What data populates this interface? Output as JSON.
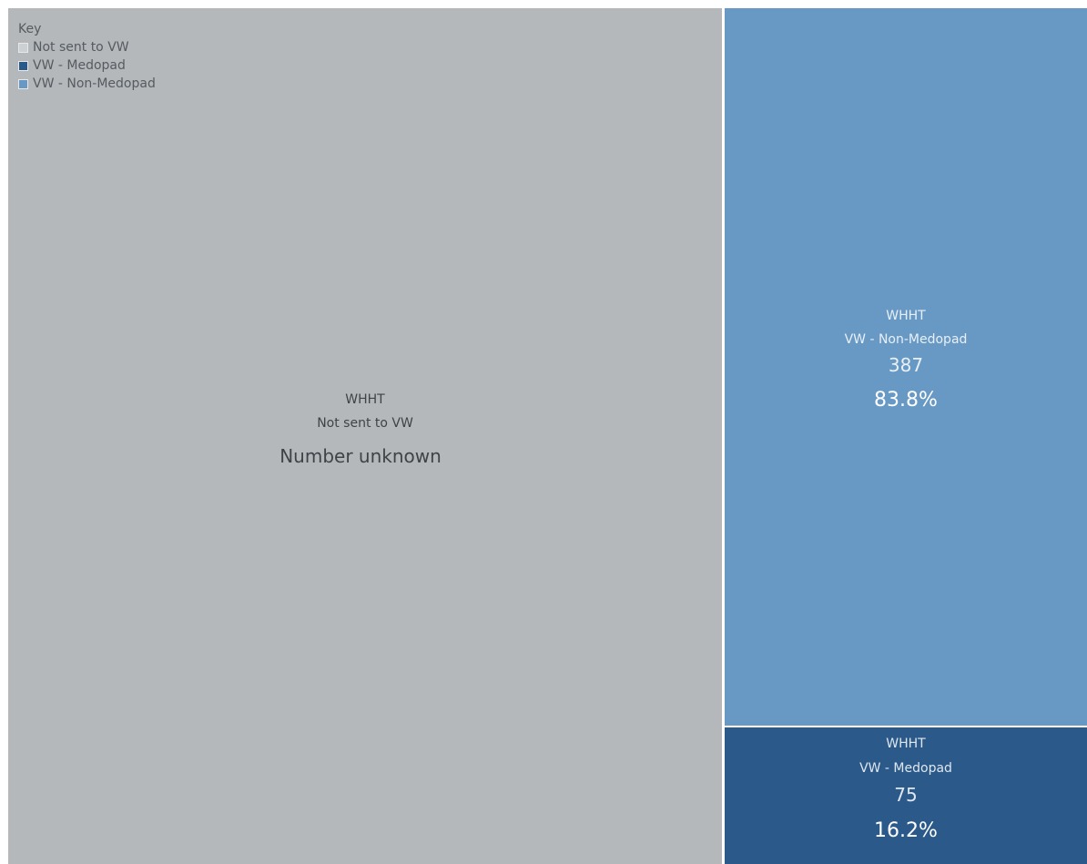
{
  "chart_data": {
    "type": "treemap",
    "legend": {
      "title": "Key",
      "placement": "top-left",
      "entries": [
        {
          "label": "Not sent to VW",
          "color": "#cdd0d3"
        },
        {
          "label": "VW - Medopad",
          "color": "#2b5a8a"
        },
        {
          "label": "VW - Non-Medopad",
          "color": "#6799c4"
        }
      ]
    },
    "tiles": [
      {
        "group": "WHHT",
        "category": "Not sent to VW",
        "value_text": "Number unknown",
        "percent_text": "",
        "color": "#b5b8bb",
        "text_color": "#3f4347"
      },
      {
        "group": "WHHT",
        "category": "VW - Non-Medopad",
        "value": 387,
        "value_text": "387",
        "percent": 83.8,
        "percent_text": "83.8%",
        "color": "#6799c4",
        "text_color": "#ffffff"
      },
      {
        "group": "WHHT",
        "category": "VW - Medopad",
        "value": 75,
        "value_text": "75",
        "percent": 16.2,
        "percent_text": "16.2%",
        "color": "#2b5a8a",
        "text_color": "#ffffff"
      }
    ]
  }
}
